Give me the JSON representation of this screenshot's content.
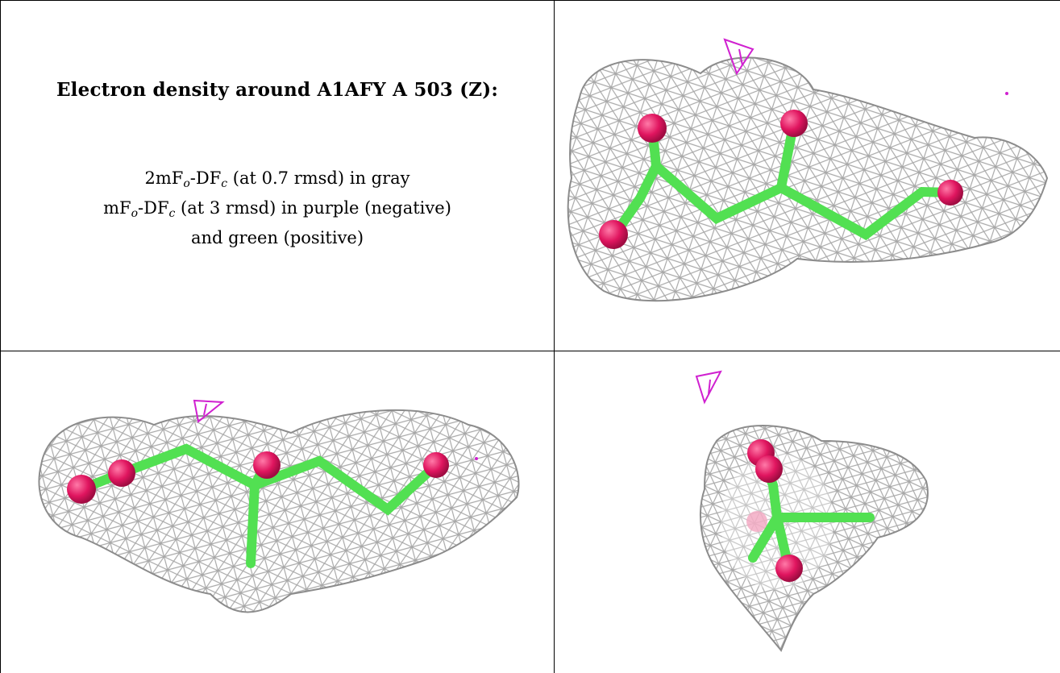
{
  "caption": {
    "title": "Electron density around A1AFY A 503 (Z):",
    "line1": {
      "pre": "2mF",
      "sub1": "o",
      "mid": "-DF",
      "sub2": "c",
      "post": " (at 0.7 rmsd) in gray"
    },
    "line2": {
      "pre": "mF",
      "sub1": "o",
      "mid": "-DF",
      "sub2": "c",
      "post": " (at 3 rmsd) in purple (negative)"
    },
    "line3": "and green (positive)"
  },
  "colors": {
    "mesh_gray": "#9e9e9e",
    "negative_purple": "#d020d0",
    "carbon_green": "#52e052",
    "oxygen_pink": "#e0155f"
  },
  "views": [
    "view-top-right",
    "view-bottom-left",
    "view-bottom-right"
  ]
}
